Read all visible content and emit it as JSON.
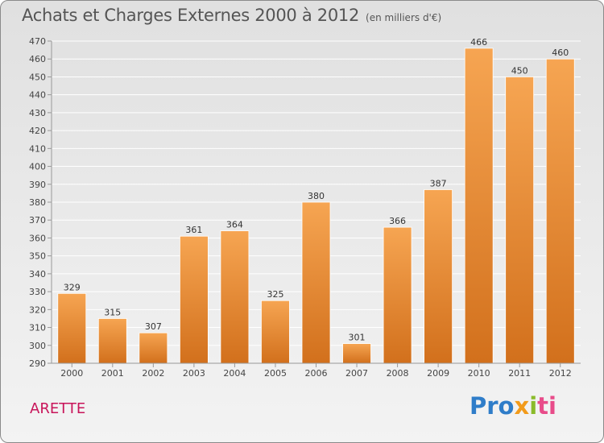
{
  "header": {
    "title": "Achats et Charges Externes 2000 à 2012",
    "unit": "(en milliers d'€)"
  },
  "footer": {
    "commune": "ARETTE",
    "logo": {
      "parts": [
        "Pro",
        "x",
        "i",
        "ti"
      ]
    }
  },
  "colors": {
    "bar_top": "#f6a552",
    "bar_bottom": "#d2701c",
    "grid": "#ffffff",
    "title": "#555555",
    "commune": "#c8155a"
  },
  "chart_data": {
    "type": "bar",
    "title": "Achats et Charges Externes 2000 à 2012",
    "subtitle": "(en milliers d'€)",
    "categories": [
      "2000",
      "2001",
      "2002",
      "2003",
      "2004",
      "2005",
      "2006",
      "2007",
      "2008",
      "2009",
      "2010",
      "2011",
      "2012"
    ],
    "values": [
      329,
      315,
      307,
      361,
      364,
      325,
      380,
      301,
      366,
      387,
      466,
      450,
      460
    ],
    "ylim": [
      290,
      470
    ],
    "yticks": [
      290,
      300,
      310,
      320,
      330,
      340,
      350,
      360,
      370,
      380,
      390,
      400,
      410,
      420,
      430,
      440,
      450,
      460,
      470
    ],
    "grid": true,
    "data_labels": true
  }
}
